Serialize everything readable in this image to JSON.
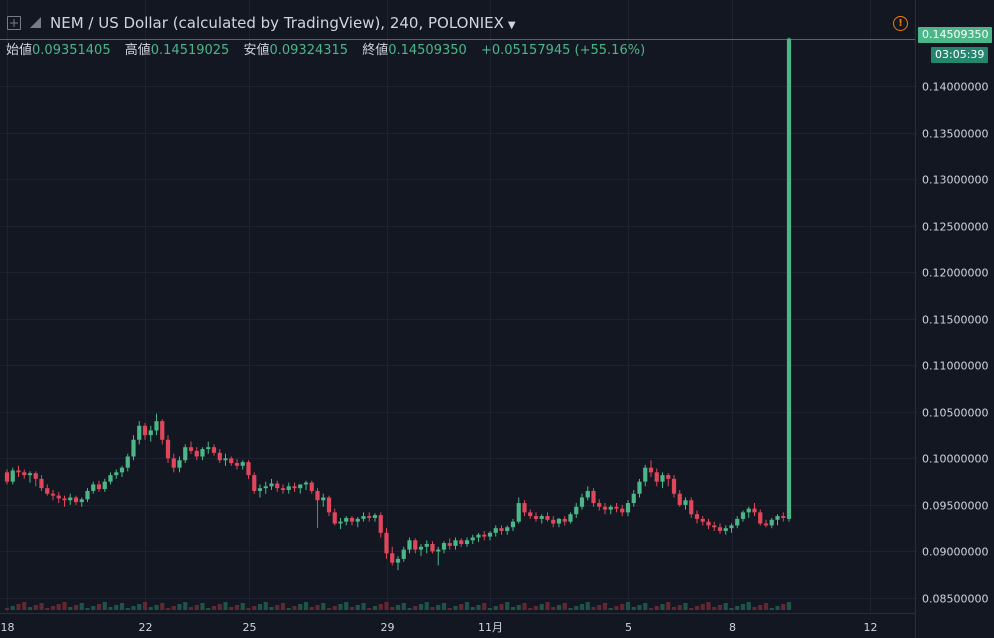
{
  "header": {
    "title": "NEM / US Dollar (calculated by TradingView), 240, POLONIEX",
    "ohlc": [
      {
        "label": "始値",
        "value": "0.09351405"
      },
      {
        "label": "高値",
        "value": "0.14519025"
      },
      {
        "label": "安値",
        "value": "0.09324315"
      },
      {
        "label": "終値",
        "value": "0.14509350"
      }
    ],
    "change": "+0.05157945 (+55.16%)"
  },
  "price_tag": {
    "price": "0.14509350",
    "countdown": "03:05:39"
  },
  "colors": {
    "up": "#4bb687",
    "down": "#e0475a",
    "grid": "#1e2230",
    "bg": "#131722",
    "text": "#d1d4dc"
  },
  "chart_data": {
    "type": "candlestick",
    "title": "NEM / US Dollar (calculated by TradingView), 240, POLONIEX",
    "ylim": [
      0.0845,
      0.1462
    ],
    "y_ticks": [
      "0.08500000",
      "0.09000000",
      "0.09500000",
      "0.10000000",
      "0.10500000",
      "0.11000000",
      "0.11500000",
      "0.12000000",
      "0.12500000",
      "0.13000000",
      "0.13500000",
      "0.14000000"
    ],
    "x_ticks": [
      {
        "label": "18",
        "index": 0
      },
      {
        "label": "22",
        "index": 24
      },
      {
        "label": "25",
        "index": 42
      },
      {
        "label": "29",
        "index": 66
      },
      {
        "label": "11月",
        "index": 84
      },
      {
        "label": "5",
        "index": 108
      },
      {
        "label": "8",
        "index": 126
      },
      {
        "label": "12",
        "index": 150
      }
    ],
    "ohlc": [
      [
        0.0985,
        0.0988,
        0.0972,
        0.0975
      ],
      [
        0.0975,
        0.099,
        0.0972,
        0.0987
      ],
      [
        0.0987,
        0.0992,
        0.098,
        0.0985
      ],
      [
        0.0985,
        0.0988,
        0.0978,
        0.0982
      ],
      [
        0.0982,
        0.0986,
        0.0974,
        0.0984
      ],
      [
        0.0984,
        0.0986,
        0.097,
        0.0978
      ],
      [
        0.0978,
        0.0982,
        0.0965,
        0.0968
      ],
      [
        0.0968,
        0.0972,
        0.096,
        0.0962
      ],
      [
        0.0962,
        0.0966,
        0.0955,
        0.096
      ],
      [
        0.096,
        0.0964,
        0.0952,
        0.0957
      ],
      [
        0.0957,
        0.096,
        0.0948,
        0.0955
      ],
      [
        0.0955,
        0.0962,
        0.095,
        0.0958
      ],
      [
        0.0958,
        0.096,
        0.095,
        0.0953
      ],
      [
        0.0953,
        0.0958,
        0.0948,
        0.0956
      ],
      [
        0.0956,
        0.0968,
        0.0953,
        0.0965
      ],
      [
        0.0965,
        0.0975,
        0.0962,
        0.0972
      ],
      [
        0.0972,
        0.0976,
        0.0964,
        0.0967
      ],
      [
        0.0967,
        0.0978,
        0.0964,
        0.0975
      ],
      [
        0.0975,
        0.0985,
        0.0972,
        0.0982
      ],
      [
        0.0982,
        0.0988,
        0.0978,
        0.0985
      ],
      [
        0.0985,
        0.0992,
        0.098,
        0.099
      ],
      [
        0.099,
        0.1005,
        0.0986,
        0.1002
      ],
      [
        0.1002,
        0.1025,
        0.0998,
        0.102
      ],
      [
        0.102,
        0.104,
        0.1015,
        0.1035
      ],
      [
        0.1035,
        0.1038,
        0.102,
        0.1025
      ],
      [
        0.1025,
        0.1035,
        0.1018,
        0.103
      ],
      [
        0.103,
        0.1048,
        0.1025,
        0.104
      ],
      [
        0.104,
        0.1042,
        0.1015,
        0.102
      ],
      [
        0.102,
        0.1025,
        0.0995,
        0.1
      ],
      [
        0.1,
        0.1005,
        0.0985,
        0.099
      ],
      [
        0.099,
        0.1002,
        0.0985,
        0.0998
      ],
      [
        0.0998,
        0.1015,
        0.0995,
        0.1012
      ],
      [
        0.1012,
        0.1018,
        0.1005,
        0.1008
      ],
      [
        0.1008,
        0.1012,
        0.0998,
        0.1002
      ],
      [
        0.1002,
        0.1012,
        0.0998,
        0.101
      ],
      [
        0.101,
        0.1018,
        0.1005,
        0.1012
      ],
      [
        0.1012,
        0.1015,
        0.1003,
        0.1006
      ],
      [
        0.1006,
        0.101,
        0.0995,
        0.0998
      ],
      [
        0.0998,
        0.1005,
        0.0992,
        0.1
      ],
      [
        0.1,
        0.1002,
        0.0992,
        0.0995
      ],
      [
        0.0995,
        0.0999,
        0.0988,
        0.0992
      ],
      [
        0.0992,
        0.0998,
        0.0988,
        0.0996
      ],
      [
        0.0996,
        0.0998,
        0.0978,
        0.0982
      ],
      [
        0.0982,
        0.0985,
        0.0962,
        0.0965
      ],
      [
        0.0965,
        0.0972,
        0.0958,
        0.0968
      ],
      [
        0.0968,
        0.0975,
        0.0962,
        0.097
      ],
      [
        0.097,
        0.0978,
        0.0966,
        0.0973
      ],
      [
        0.0973,
        0.0976,
        0.0964,
        0.0968
      ],
      [
        0.0968,
        0.0972,
        0.0962,
        0.0966
      ],
      [
        0.0966,
        0.0974,
        0.0962,
        0.097
      ],
      [
        0.097,
        0.0974,
        0.0964,
        0.0968
      ],
      [
        0.0968,
        0.0972,
        0.0962,
        0.0972
      ],
      [
        0.0972,
        0.0976,
        0.0966,
        0.0974
      ],
      [
        0.0974,
        0.0976,
        0.0962,
        0.0965
      ],
      [
        0.0965,
        0.0968,
        0.0925,
        0.0955
      ],
      [
        0.0955,
        0.0962,
        0.0948,
        0.0958
      ],
      [
        0.0958,
        0.096,
        0.0938,
        0.0942
      ],
      [
        0.0942,
        0.0946,
        0.0928,
        0.093
      ],
      [
        0.093,
        0.0936,
        0.0924,
        0.0932
      ],
      [
        0.0932,
        0.0938,
        0.0928,
        0.0936
      ],
      [
        0.0936,
        0.0938,
        0.0928,
        0.0932
      ],
      [
        0.0932,
        0.0937,
        0.0926,
        0.0935
      ],
      [
        0.0935,
        0.0942,
        0.0932,
        0.0938
      ],
      [
        0.0938,
        0.0942,
        0.0932,
        0.0936
      ],
      [
        0.0936,
        0.0941,
        0.0932,
        0.0939
      ],
      [
        0.0939,
        0.0942,
        0.0915,
        0.092
      ],
      [
        0.092,
        0.0925,
        0.0892,
        0.0898
      ],
      [
        0.0898,
        0.0905,
        0.0885,
        0.0888
      ],
      [
        0.0888,
        0.0895,
        0.088,
        0.0892
      ],
      [
        0.0892,
        0.0905,
        0.0889,
        0.0902
      ],
      [
        0.0902,
        0.0915,
        0.0898,
        0.0912
      ],
      [
        0.0912,
        0.0914,
        0.0898,
        0.0902
      ],
      [
        0.0902,
        0.0908,
        0.0895,
        0.0905
      ],
      [
        0.0905,
        0.0912,
        0.0898,
        0.0908
      ],
      [
        0.0908,
        0.0911,
        0.0898,
        0.09
      ],
      [
        0.09,
        0.0905,
        0.0885,
        0.0902
      ],
      [
        0.0902,
        0.0911,
        0.0898,
        0.0909
      ],
      [
        0.0909,
        0.0914,
        0.0902,
        0.0906
      ],
      [
        0.0906,
        0.0915,
        0.0902,
        0.0912
      ],
      [
        0.0912,
        0.0914,
        0.0905,
        0.0908
      ],
      [
        0.0908,
        0.0915,
        0.0905,
        0.0912
      ],
      [
        0.0912,
        0.0918,
        0.0908,
        0.0915
      ],
      [
        0.0915,
        0.092,
        0.091,
        0.0918
      ],
      [
        0.0918,
        0.0922,
        0.0912,
        0.0916
      ],
      [
        0.0916,
        0.0922,
        0.0912,
        0.092
      ],
      [
        0.092,
        0.0928,
        0.0916,
        0.0925
      ],
      [
        0.0925,
        0.0928,
        0.0918,
        0.0922
      ],
      [
        0.0922,
        0.0928,
        0.0918,
        0.0926
      ],
      [
        0.0926,
        0.0935,
        0.0922,
        0.0932
      ],
      [
        0.0932,
        0.0958,
        0.093,
        0.0952
      ],
      [
        0.0952,
        0.0955,
        0.0938,
        0.0942
      ],
      [
        0.0942,
        0.0945,
        0.0935,
        0.0938
      ],
      [
        0.0938,
        0.0942,
        0.0932,
        0.0935
      ],
      [
        0.0935,
        0.094,
        0.093,
        0.0938
      ],
      [
        0.0938,
        0.0942,
        0.0932,
        0.0934
      ],
      [
        0.0934,
        0.0938,
        0.0926,
        0.093
      ],
      [
        0.093,
        0.0936,
        0.0926,
        0.0935
      ],
      [
        0.0935,
        0.0938,
        0.0928,
        0.0932
      ],
      [
        0.0932,
        0.0942,
        0.093,
        0.094
      ],
      [
        0.094,
        0.0952,
        0.0936,
        0.0948
      ],
      [
        0.0948,
        0.0962,
        0.0945,
        0.0958
      ],
      [
        0.0958,
        0.097,
        0.0955,
        0.0965
      ],
      [
        0.0965,
        0.0968,
        0.0948,
        0.0952
      ],
      [
        0.0952,
        0.0956,
        0.0944,
        0.0948
      ],
      [
        0.0948,
        0.0952,
        0.094,
        0.0945
      ],
      [
        0.0945,
        0.095,
        0.094,
        0.0948
      ],
      [
        0.0948,
        0.0952,
        0.0942,
        0.0946
      ],
      [
        0.0946,
        0.095,
        0.0938,
        0.0942
      ],
      [
        0.0942,
        0.0955,
        0.0938,
        0.0952
      ],
      [
        0.0952,
        0.0966,
        0.0948,
        0.0962
      ],
      [
        0.0962,
        0.0978,
        0.0958,
        0.0975
      ],
      [
        0.0975,
        0.0993,
        0.097,
        0.099
      ],
      [
        0.099,
        0.0998,
        0.098,
        0.0985
      ],
      [
        0.0985,
        0.0989,
        0.097,
        0.0975
      ],
      [
        0.0975,
        0.0985,
        0.0968,
        0.0982
      ],
      [
        0.0982,
        0.0984,
        0.097,
        0.0978
      ],
      [
        0.0978,
        0.0982,
        0.0958,
        0.0962
      ],
      [
        0.0962,
        0.0966,
        0.0948,
        0.095
      ],
      [
        0.095,
        0.0958,
        0.0945,
        0.0955
      ],
      [
        0.0955,
        0.0958,
        0.0936,
        0.094
      ],
      [
        0.094,
        0.0944,
        0.093,
        0.0935
      ],
      [
        0.0935,
        0.0938,
        0.0928,
        0.0932
      ],
      [
        0.0932,
        0.0935,
        0.0924,
        0.0928
      ],
      [
        0.0928,
        0.0932,
        0.0922,
        0.0926
      ],
      [
        0.0926,
        0.093,
        0.0919,
        0.0922
      ],
      [
        0.0922,
        0.0928,
        0.0918,
        0.0925
      ],
      [
        0.0925,
        0.093,
        0.092,
        0.0928
      ],
      [
        0.0928,
        0.0938,
        0.0925,
        0.0935
      ],
      [
        0.0935,
        0.0944,
        0.0932,
        0.0942
      ],
      [
        0.0942,
        0.0948,
        0.0936,
        0.0946
      ],
      [
        0.0946,
        0.0952,
        0.0938,
        0.0942
      ],
      [
        0.0942,
        0.0945,
        0.0928,
        0.093
      ],
      [
        0.093,
        0.0934,
        0.0926,
        0.0928
      ],
      [
        0.0928,
        0.0936,
        0.0925,
        0.0934
      ],
      [
        0.0934,
        0.094,
        0.0928,
        0.0938
      ],
      [
        0.0938,
        0.0942,
        0.0932,
        0.0936
      ],
      [
        0.0935,
        0.14519,
        0.0932,
        0.14509
      ]
    ]
  }
}
